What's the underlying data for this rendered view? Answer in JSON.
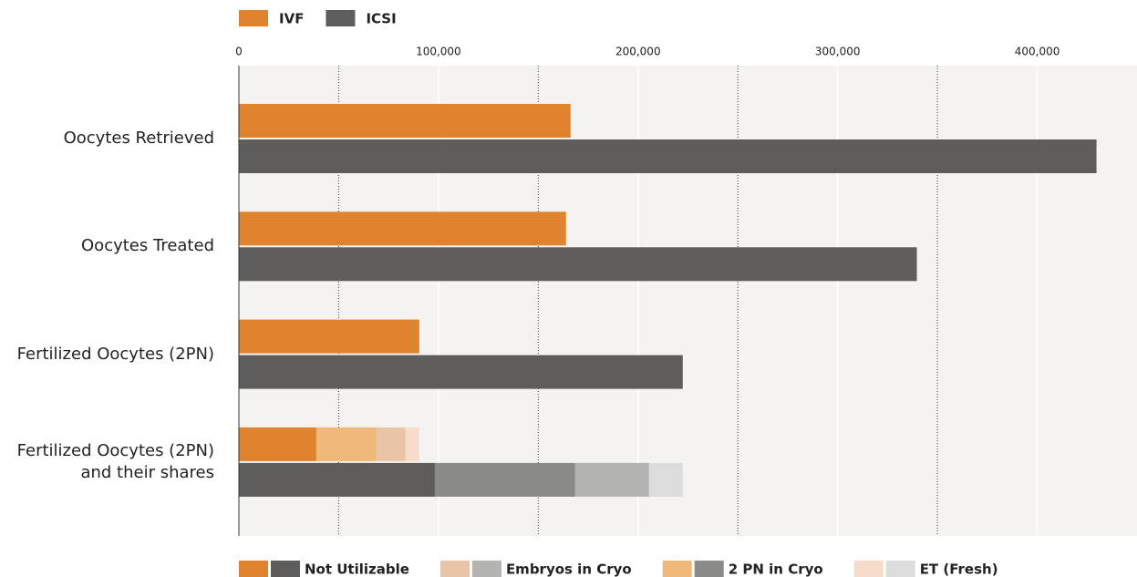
{
  "chart_data": {
    "type": "bar",
    "orientation": "horizontal",
    "categories": [
      "Oocytes Retrieved",
      "Oocytes Treated",
      "Fertilized Oocytes (2PN)",
      "Fertilized Oocytes (2PN) and their shares"
    ],
    "series": [
      {
        "name": "IVF",
        "color": "#e0832f",
        "values": [
          166200,
          163900,
          90400,
          null
        ]
      },
      {
        "name": "ICSI",
        "color": "#5e5d5b",
        "values": [
          429700,
          339700,
          222400,
          null
        ]
      }
    ],
    "shares": [
      {
        "name": "Not Utilizable",
        "colors": [
          "#e0832f",
          "#5e5d5b"
        ],
        "values": [
          38800,
          98200
        ]
      },
      {
        "name": "2 PN in Cryo",
        "colors": [
          "#f0b87a",
          "#8a8a89"
        ],
        "values": [
          30100,
          70300
        ]
      },
      {
        "name": "Embryos in Cryo",
        "colors": [
          "#e8c5a8",
          "#b3b3b2"
        ],
        "values": [
          14600,
          37000
        ]
      },
      {
        "name": "ET (Fresh)",
        "colors": [
          "#f8dccb",
          "#dcdcdc"
        ],
        "values": [
          6800,
          16900
        ]
      }
    ],
    "xlim": [
      0,
      450000
    ],
    "xticks": [
      0,
      {
        "value": 100000,
        "label": "100,000"
      },
      {
        "value": 200000,
        "label": "200,000"
      },
      {
        "value": 300000,
        "label": "300,000"
      },
      {
        "value": 400000,
        "label": "400,000"
      }
    ],
    "minor_xticks": [
      50000,
      150000,
      250000,
      350000
    ],
    "grid": true
  }
}
